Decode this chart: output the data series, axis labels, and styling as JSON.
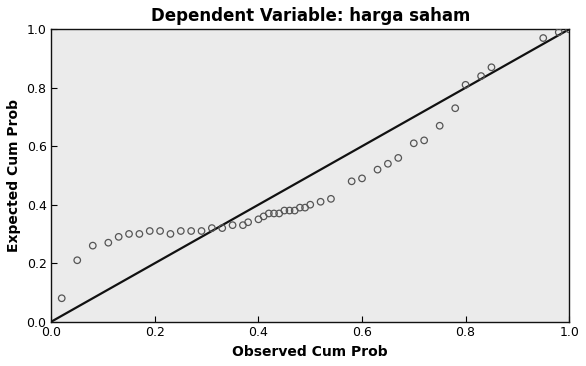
{
  "title": "Dependent Variable: harga saham",
  "xlabel": "Observed Cum Prob",
  "ylabel": "Expected Cum Prob",
  "xlim": [
    0.0,
    1.0
  ],
  "ylim": [
    0.0,
    1.0
  ],
  "xticks": [
    0.0,
    0.2,
    0.4,
    0.6,
    0.8,
    1.0
  ],
  "yticks": [
    0.0,
    0.2,
    0.4,
    0.6,
    0.8,
    1.0
  ],
  "plot_bg_color": "#ebebeb",
  "fig_bg_color": "#ffffff",
  "line_color": "#111111",
  "marker_face_color": "none",
  "marker_edge_color": "#555555",
  "observed": [
    0.02,
    0.05,
    0.08,
    0.11,
    0.13,
    0.15,
    0.17,
    0.19,
    0.21,
    0.23,
    0.25,
    0.27,
    0.29,
    0.31,
    0.33,
    0.35,
    0.37,
    0.38,
    0.4,
    0.41,
    0.42,
    0.43,
    0.44,
    0.45,
    0.46,
    0.47,
    0.48,
    0.49,
    0.5,
    0.52,
    0.54,
    0.58,
    0.6,
    0.63,
    0.65,
    0.67,
    0.7,
    0.72,
    0.75,
    0.78,
    0.8,
    0.83,
    0.85,
    0.95,
    0.98,
    1.0
  ],
  "expected": [
    0.08,
    0.21,
    0.26,
    0.27,
    0.29,
    0.3,
    0.3,
    0.31,
    0.31,
    0.3,
    0.31,
    0.31,
    0.31,
    0.32,
    0.32,
    0.33,
    0.33,
    0.34,
    0.35,
    0.36,
    0.37,
    0.37,
    0.37,
    0.38,
    0.38,
    0.38,
    0.39,
    0.39,
    0.4,
    0.41,
    0.42,
    0.48,
    0.49,
    0.52,
    0.54,
    0.56,
    0.61,
    0.62,
    0.67,
    0.73,
    0.81,
    0.84,
    0.87,
    0.97,
    0.99,
    1.0
  ],
  "title_fontsize": 12,
  "label_fontsize": 10,
  "tick_fontsize": 9,
  "marker_size": 22,
  "marker_linewidth": 0.9,
  "line_width": 1.6
}
